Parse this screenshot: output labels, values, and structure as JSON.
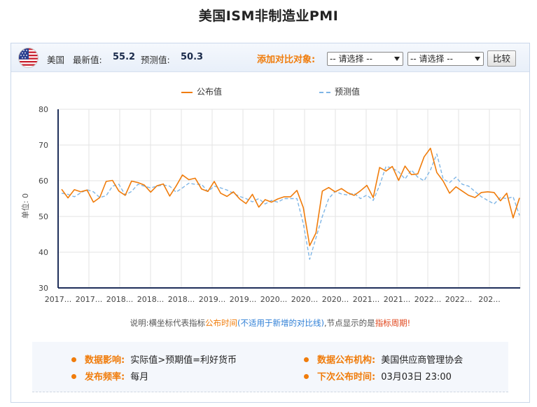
{
  "page_title": "美国ISM非制造业PMI",
  "topbar": {
    "country": "美国",
    "latest_label": "最新值:",
    "latest_value": "55.2",
    "forecast_label": "预测值:",
    "forecast_value": "50.3",
    "compare_label": "添加对比对象:",
    "select1": "-- 请选择 --",
    "select2": "-- 请选择 --",
    "compare_button": "比较"
  },
  "note": {
    "prefix": "说明:横坐标代表指标",
    "time": "公布时间",
    "paren": "(不适用于新增的对比线)",
    "middle": ",节点显示的是",
    "period": "指标周期!"
  },
  "info": {
    "impact_label": "数据影响:",
    "impact_value": "实际值>预期值=利好货币",
    "agency_label": "数据公布机构:",
    "agency_value": "美国供应商管理协会",
    "freq_label": "发布频率:",
    "freq_value": "每月",
    "next_label": "下次公布时间:",
    "next_value": "03月03日 23:00"
  },
  "colors": {
    "actual": "#f07c0b",
    "forecast": "#7fb6e6",
    "accent": "#f07c0b"
  },
  "chart_data": {
    "type": "line",
    "ylabel": "单位: 0",
    "ylim": [
      30,
      80
    ],
    "yticks": [
      30,
      40,
      50,
      60,
      70,
      80
    ],
    "grid": true,
    "legend_position": "top",
    "x_tick_labels": [
      "2017...",
      "2017...",
      "2018...",
      "2018...",
      "2018...",
      "2019...",
      "2019...",
      "2020...",
      "2020...",
      "2020...",
      "2021...",
      "2021...",
      "2022...",
      "2022...",
      "202..."
    ],
    "series": [
      {
        "name": "公布值",
        "color": "#f07c0b",
        "values": [
          57.6,
          55.2,
          57.5,
          56.9,
          57.4,
          54.0,
          55.3,
          59.8,
          60.1,
          57.1,
          55.9,
          59.9,
          59.5,
          58.8,
          56.8,
          58.6,
          59.1,
          55.7,
          58.5,
          61.6,
          60.3,
          60.7,
          57.7,
          57.0,
          59.8,
          56.5,
          55.6,
          56.9,
          54.9,
          53.6,
          56.2,
          52.6,
          54.7,
          54.0,
          54.9,
          55.5,
          55.5,
          57.3,
          52.5,
          41.8,
          45.4,
          57.1,
          58.1,
          56.9,
          57.8,
          56.6,
          55.9,
          57.2,
          58.7,
          55.3,
          63.7,
          62.7,
          64.0,
          60.1,
          64.1,
          61.7,
          61.9,
          66.7,
          69.1,
          62.3,
          59.9,
          56.5,
          58.3,
          57.1,
          55.9,
          55.3,
          56.7,
          56.9,
          56.7,
          54.4,
          56.5,
          49.6,
          55.2
        ]
      },
      {
        "name": "预测值",
        "color": "#7fb6e6",
        "values": [
          56.5,
          56.2,
          55.5,
          56.6,
          57.5,
          56.9,
          55.3,
          55.8,
          58.5,
          59.0,
          56.0,
          57.0,
          59.0,
          58.5,
          58.0,
          58.5,
          58.8,
          58.5,
          56.8,
          58.0,
          59.3,
          59.0,
          59.0,
          57.0,
          58.5,
          58.0,
          57.4,
          56.5,
          55.6,
          55.0,
          54.1,
          55.0,
          53.5,
          54.5,
          54.0,
          55.0,
          55.0,
          55.0,
          48.0,
          38.0,
          44.0,
          50.0,
          55.0,
          57.0,
          56.3,
          56.0,
          56.5,
          55.0,
          56.0,
          54.5,
          58.7,
          64.0,
          63.5,
          62.5,
          60.5,
          63.0,
          61.0,
          60.0,
          63.0,
          67.5,
          60.5,
          59.5,
          61.0,
          59.0,
          58.5,
          57.0,
          55.5,
          54.5,
          53.5,
          55.3,
          55.0,
          55.5,
          50.3
        ]
      }
    ]
  }
}
